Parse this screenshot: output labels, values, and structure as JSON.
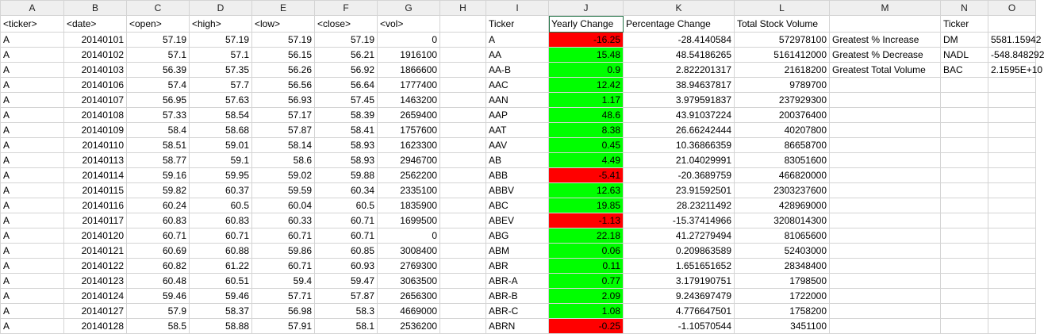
{
  "columns": [
    "A",
    "B",
    "C",
    "D",
    "E",
    "F",
    "G",
    "H",
    "I",
    "J",
    "K",
    "L",
    "M",
    "N",
    "O"
  ],
  "rows": [
    [
      "<ticker>",
      "<date>",
      "<open>",
      "<high>",
      "<low>",
      "<close>",
      "<vol>",
      "",
      "Ticker",
      "Yearly Change",
      "Percentage Change",
      "Total Stock Volume",
      "",
      "Ticker",
      ""
    ],
    [
      "A",
      "20140101",
      "57.19",
      "57.19",
      "57.19",
      "57.19",
      "0",
      "",
      "A",
      "-16.25",
      "-28.4140584",
      "572978100",
      "Greatest % Increase",
      "DM",
      "5581.15942"
    ],
    [
      "A",
      "20140102",
      "57.1",
      "57.1",
      "56.15",
      "56.21",
      "1916100",
      "",
      "AA",
      "15.48",
      "48.54186265",
      "5161412000",
      "Greatest % Decrease",
      "NADL",
      "-548.848292"
    ],
    [
      "A",
      "20140103",
      "56.39",
      "57.35",
      "56.26",
      "56.92",
      "1866600",
      "",
      "AA-B",
      "0.9",
      "2.822201317",
      "21618200",
      "Greatest Total Volume",
      "BAC",
      "2.1595E+10"
    ],
    [
      "A",
      "20140106",
      "57.4",
      "57.7",
      "56.56",
      "56.64",
      "1777400",
      "",
      "AAC",
      "12.42",
      "38.94637817",
      "9789700",
      "",
      "",
      ""
    ],
    [
      "A",
      "20140107",
      "56.95",
      "57.63",
      "56.93",
      "57.45",
      "1463200",
      "",
      "AAN",
      "1.17",
      "3.979591837",
      "237929300",
      "",
      "",
      ""
    ],
    [
      "A",
      "20140108",
      "57.33",
      "58.54",
      "57.17",
      "58.39",
      "2659400",
      "",
      "AAP",
      "48.6",
      "43.91037224",
      "200376400",
      "",
      "",
      ""
    ],
    [
      "A",
      "20140109",
      "58.4",
      "58.68",
      "57.87",
      "58.41",
      "1757600",
      "",
      "AAT",
      "8.38",
      "26.66242444",
      "40207800",
      "",
      "",
      ""
    ],
    [
      "A",
      "20140110",
      "58.51",
      "59.01",
      "58.14",
      "58.93",
      "1623300",
      "",
      "AAV",
      "0.45",
      "10.36866359",
      "86658700",
      "",
      "",
      ""
    ],
    [
      "A",
      "20140113",
      "58.77",
      "59.1",
      "58.6",
      "58.93",
      "2946700",
      "",
      "AB",
      "4.49",
      "21.04029991",
      "83051600",
      "",
      "",
      ""
    ],
    [
      "A",
      "20140114",
      "59.16",
      "59.95",
      "59.02",
      "59.88",
      "2562200",
      "",
      "ABB",
      "-5.41",
      "-20.3689759",
      "466820000",
      "",
      "",
      ""
    ],
    [
      "A",
      "20140115",
      "59.82",
      "60.37",
      "59.59",
      "60.34",
      "2335100",
      "",
      "ABBV",
      "12.63",
      "23.91592501",
      "2303237600",
      "",
      "",
      ""
    ],
    [
      "A",
      "20140116",
      "60.24",
      "60.5",
      "60.04",
      "60.5",
      "1835900",
      "",
      "ABC",
      "19.85",
      "28.23211492",
      "428969000",
      "",
      "",
      ""
    ],
    [
      "A",
      "20140117",
      "60.83",
      "60.83",
      "60.33",
      "60.71",
      "1699500",
      "",
      "ABEV",
      "-1.13",
      "-15.37414966",
      "3208014300",
      "",
      "",
      ""
    ],
    [
      "A",
      "20140120",
      "60.71",
      "60.71",
      "60.71",
      "60.71",
      "0",
      "",
      "ABG",
      "22.18",
      "41.27279494",
      "81065600",
      "",
      "",
      ""
    ],
    [
      "A",
      "20140121",
      "60.69",
      "60.88",
      "59.86",
      "60.85",
      "3008400",
      "",
      "ABM",
      "0.06",
      "0.209863589",
      "52403000",
      "",
      "",
      ""
    ],
    [
      "A",
      "20140122",
      "60.82",
      "61.22",
      "60.71",
      "60.93",
      "2769300",
      "",
      "ABR",
      "0.11",
      "1.651651652",
      "28348400",
      "",
      "",
      ""
    ],
    [
      "A",
      "20140123",
      "60.48",
      "60.51",
      "59.4",
      "59.47",
      "3063500",
      "",
      "ABR-A",
      "0.77",
      "3.179190751",
      "1798500",
      "",
      "",
      ""
    ],
    [
      "A",
      "20140124",
      "59.46",
      "59.46",
      "57.71",
      "57.87",
      "2656300",
      "",
      "ABR-B",
      "2.09",
      "9.243697479",
      "1722000",
      "",
      "",
      ""
    ],
    [
      "A",
      "20140127",
      "57.9",
      "58.37",
      "56.98",
      "58.3",
      "4669000",
      "",
      "ABR-C",
      "1.08",
      "4.776647501",
      "1758200",
      "",
      "",
      ""
    ],
    [
      "A",
      "20140128",
      "58.5",
      "58.88",
      "57.91",
      "58.1",
      "2536200",
      "",
      "ABRN",
      "-0.25",
      "-1.10570544",
      "3451100",
      "",
      "",
      ""
    ]
  ],
  "colors": {
    "positive": "#00ff00",
    "negative": "#ff0000"
  }
}
